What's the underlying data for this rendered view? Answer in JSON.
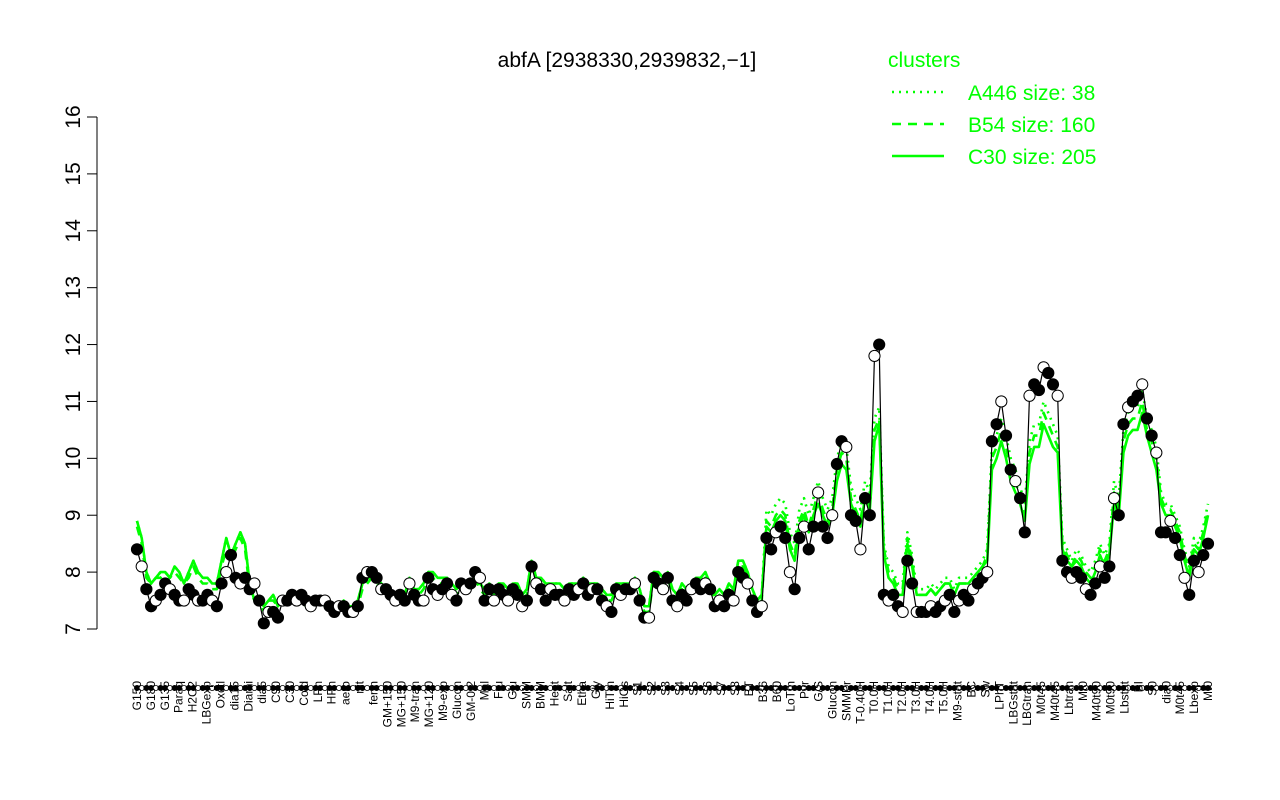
{
  "chart_data": {
    "type": "line",
    "title": "abfA [2938330,2939832,−1]",
    "xlabel": "",
    "ylabel": "",
    "ylim": [
      7,
      16
    ],
    "yticks": [
      7,
      8,
      9,
      10,
      11,
      12,
      13,
      14,
      15,
      16
    ],
    "x_tick_labels": [
      "G150",
      "G180",
      "G135",
      "Paraq",
      "H2O2",
      "LBGexp",
      "Oxctl",
      "dia15",
      "Diami",
      "dia5",
      "C90",
      "C30",
      "Cold",
      "LPh",
      "HPh",
      "aero",
      "nit",
      "ferm",
      "GM+150",
      "MG+150",
      "M9-tran",
      "MG+120",
      "M9-exp",
      "Glucon",
      "GM-0.2",
      "Mal",
      "Fru",
      "Glu",
      "SMM",
      "BMM",
      "Heat",
      "Salt",
      "Etha",
      "Gly",
      "HiTm",
      "HiOs",
      "S1",
      "S2",
      "S3",
      "S4",
      "S5",
      "S6",
      "S7",
      "S8",
      "BT",
      "B36",
      "B60",
      "LoTm",
      "Pyr",
      "G/S",
      "Glucon",
      "SMMPr",
      "T-0.40H",
      "T0.0H",
      "T1.0H",
      "T2.0H",
      "T3.0H",
      "T4.0H",
      "T5.0H",
      "M9-stat",
      "BC",
      "Sw",
      "LPhT",
      "LBGstat",
      "LBGtran",
      "M0t45",
      "M40t45",
      "Lbtran",
      "Mt0",
      "M40t90",
      "M0t90",
      "Lbstat",
      "BI",
      "S0",
      "dia0",
      "M0t45",
      "Lbexp",
      "Mt0"
    ],
    "legend": {
      "title": "clusters",
      "position": "top-right",
      "entries": [
        {
          "label": "A446 size: 38",
          "style": "dotted"
        },
        {
          "label": "B54 size: 160",
          "style": "dashed"
        },
        {
          "label": "C30 size: 205",
          "style": "solid"
        }
      ]
    },
    "series": [
      {
        "name": "abfA",
        "style": "black line with filled and open circle markers",
        "values": [
          8.4,
          8.1,
          7.7,
          7.4,
          7.5,
          7.6,
          7.8,
          7.7,
          7.6,
          7.5,
          7.5,
          7.7,
          7.6,
          7.5,
          7.5,
          7.6,
          7.5,
          7.4,
          7.8,
          8.0,
          8.3,
          7.9,
          7.8,
          7.9,
          7.7,
          7.8,
          7.5,
          7.1,
          7.3,
          7.3,
          7.2,
          7.5,
          7.5,
          7.6,
          7.5,
          7.6,
          7.5,
          7.4,
          7.5,
          7.5,
          7.5,
          7.4,
          7.3,
          7.4,
          7.4,
          7.3,
          7.3,
          7.4,
          7.9,
          8.0,
          8.0,
          7.9,
          7.7,
          7.7,
          7.6,
          7.5,
          7.6,
          7.5,
          7.8,
          7.6,
          7.5,
          7.5,
          7.9,
          7.7,
          7.6,
          7.7,
          7.8,
          7.6,
          7.5,
          7.8,
          7.7,
          7.8,
          8.0,
          7.9,
          7.5,
          7.7,
          7.5,
          7.7,
          7.6,
          7.5,
          7.7,
          7.6,
          7.4,
          7.5,
          8.1,
          7.8,
          7.7,
          7.5,
          7.7,
          7.6,
          7.6,
          7.5,
          7.7,
          7.6,
          7.7,
          7.8,
          7.6,
          7.7,
          7.7,
          7.5,
          7.4,
          7.3,
          7.7,
          7.6,
          7.7,
          7.7,
          7.8,
          7.5,
          7.2,
          7.2,
          7.9,
          7.8,
          7.7,
          7.9,
          7.5,
          7.4,
          7.6,
          7.5,
          7.7,
          7.8,
          7.7,
          7.8,
          7.7,
          7.4,
          7.5,
          7.4,
          7.6,
          7.5,
          8.0,
          7.9,
          7.8,
          7.5,
          7.3,
          7.4,
          8.6,
          8.4,
          8.7,
          8.8,
          8.6,
          8.0,
          7.7,
          8.6,
          8.8,
          8.4,
          8.8,
          9.4,
          8.8,
          8.6,
          9.0,
          9.9,
          10.3,
          10.2,
          9.0,
          8.9,
          8.4,
          9.3,
          9.0,
          11.8,
          12.0,
          7.6,
          7.5,
          7.6,
          7.4,
          7.3,
          8.2,
          7.8,
          7.3,
          7.3,
          7.3,
          7.4,
          7.3,
          7.4,
          7.5,
          7.6,
          7.3,
          7.5,
          7.6,
          7.5,
          7.7,
          7.8,
          7.9,
          8.0,
          10.3,
          10.6,
          11.0,
          10.4,
          9.8,
          9.6,
          9.3,
          8.7,
          11.1,
          11.3,
          11.2,
          11.6,
          11.5,
          11.3,
          11.1,
          8.2,
          8.0,
          7.9,
          8.0,
          7.9,
          7.7,
          7.6,
          7.8,
          8.1,
          7.9,
          8.1,
          9.3,
          9.0,
          10.6,
          10.9,
          11.0,
          11.1,
          11.3,
          10.7,
          10.4,
          10.1,
          8.7,
          8.7,
          8.9,
          8.6,
          8.3,
          7.9,
          7.6,
          8.2,
          8.0,
          8.3,
          8.5
        ]
      },
      {
        "name": "C30 size: 205",
        "style": "solid green line",
        "values": [
          8.9,
          8.6,
          8.0,
          7.8,
          7.9,
          8.0,
          8.0,
          7.9,
          8.1,
          8.0,
          7.8,
          8.0,
          8.2,
          8.0,
          7.9,
          7.9,
          7.8,
          7.8,
          8.2,
          8.6,
          8.3,
          8.5,
          8.7,
          8.5,
          7.8,
          7.5,
          7.5,
          7.4,
          7.5,
          7.6,
          7.4,
          7.5,
          7.6,
          7.6,
          7.6,
          7.5,
          7.4,
          7.4,
          7.5,
          7.5,
          7.4,
          7.4,
          7.3,
          7.4,
          7.5,
          7.4,
          7.4,
          7.5,
          7.8,
          7.9,
          7.9,
          7.9,
          7.8,
          7.7,
          7.6,
          7.6,
          7.6,
          7.6,
          7.9,
          7.7,
          7.7,
          7.8,
          8.0,
          8.0,
          7.9,
          7.9,
          7.9,
          7.8,
          7.7,
          7.8,
          7.8,
          7.8,
          7.9,
          7.8,
          7.7,
          7.8,
          7.7,
          7.8,
          7.8,
          7.7,
          7.8,
          7.8,
          7.6,
          7.7,
          8.2,
          7.9,
          7.9,
          7.8,
          7.8,
          7.8,
          7.8,
          7.7,
          7.8,
          7.8,
          7.8,
          7.9,
          7.8,
          7.8,
          7.8,
          7.7,
          7.6,
          7.6,
          7.8,
          7.8,
          7.8,
          7.8,
          7.9,
          7.7,
          7.4,
          7.4,
          8.0,
          8.0,
          7.9,
          8.0,
          7.7,
          7.6,
          7.8,
          7.7,
          7.8,
          7.9,
          7.9,
          8.0,
          7.8,
          7.6,
          7.7,
          7.6,
          7.8,
          7.7,
          8.2,
          8.2,
          8.0,
          7.7,
          7.5,
          7.6,
          8.8,
          8.7,
          8.9,
          9.0,
          8.9,
          8.4,
          8.2,
          8.8,
          9.0,
          8.7,
          9.0,
          9.2,
          9.0,
          8.8,
          9.0,
          9.6,
          9.9,
          9.8,
          9.2,
          9.0,
          8.8,
          9.3,
          9.1,
          10.3,
          10.6,
          8.3,
          7.9,
          7.8,
          7.6,
          7.6,
          8.5,
          8.1,
          7.6,
          7.6,
          7.6,
          7.7,
          7.6,
          7.7,
          7.8,
          7.8,
          7.6,
          7.8,
          7.8,
          7.8,
          7.9,
          8.0,
          8.1,
          8.2,
          9.8,
          10.0,
          10.3,
          10.0,
          9.6,
          9.4,
          9.2,
          8.9,
          9.9,
          10.2,
          10.2,
          10.6,
          10.4,
          10.2,
          10.1,
          8.4,
          8.2,
          8.1,
          8.2,
          8.1,
          7.9,
          7.8,
          8.0,
          8.3,
          8.1,
          8.3,
          9.2,
          9.0,
          10.1,
          10.4,
          10.5,
          10.5,
          10.8,
          10.4,
          10.1,
          9.8,
          9.2,
          9.0,
          9.0,
          8.8,
          8.6,
          8.2,
          7.9,
          8.4,
          8.3,
          8.6,
          9.0
        ]
      },
      {
        "name": "B54 size: 160",
        "style": "dashed green line",
        "values": [
          8.8,
          8.5,
          7.9,
          7.8,
          7.9,
          7.9,
          8.0,
          7.9,
          8.0,
          7.9,
          7.8,
          7.9,
          8.1,
          7.9,
          7.8,
          7.8,
          7.7,
          7.7,
          8.1,
          8.4,
          8.2,
          8.4,
          8.6,
          8.4,
          7.7,
          7.5,
          7.5,
          7.3,
          7.5,
          7.5,
          7.4,
          7.5,
          7.5,
          7.6,
          7.6,
          7.5,
          7.4,
          7.4,
          7.5,
          7.5,
          7.4,
          7.4,
          7.3,
          7.4,
          7.4,
          7.4,
          7.3,
          7.4,
          7.7,
          7.8,
          7.9,
          7.8,
          7.7,
          7.7,
          7.6,
          7.6,
          7.6,
          7.6,
          7.8,
          7.6,
          7.6,
          7.7,
          7.9,
          7.9,
          7.8,
          7.8,
          7.8,
          7.7,
          7.6,
          7.7,
          7.7,
          7.8,
          7.9,
          7.7,
          7.6,
          7.7,
          7.6,
          7.7,
          7.7,
          7.6,
          7.7,
          7.7,
          7.5,
          7.6,
          8.1,
          7.8,
          7.8,
          7.7,
          7.7,
          7.7,
          7.7,
          7.6,
          7.7,
          7.7,
          7.7,
          7.8,
          7.7,
          7.7,
          7.7,
          7.6,
          7.5,
          7.5,
          7.7,
          7.7,
          7.7,
          7.7,
          7.8,
          7.6,
          7.3,
          7.3,
          7.9,
          7.9,
          7.8,
          7.9,
          7.6,
          7.5,
          7.7,
          7.6,
          7.7,
          7.8,
          7.8,
          7.9,
          7.7,
          7.5,
          7.6,
          7.5,
          7.7,
          7.6,
          8.1,
          8.1,
          7.9,
          7.6,
          7.4,
          7.5,
          8.9,
          8.8,
          9.0,
          9.1,
          9.0,
          8.5,
          8.3,
          8.9,
          9.1,
          8.8,
          9.1,
          9.4,
          9.1,
          8.9,
          9.1,
          9.8,
          10.1,
          10.0,
          9.3,
          9.1,
          8.9,
          9.4,
          9.2,
          10.5,
          10.7,
          8.4,
          8.0,
          7.9,
          7.7,
          7.7,
          8.6,
          8.2,
          7.6,
          7.6,
          7.6,
          7.7,
          7.6,
          7.7,
          7.8,
          7.8,
          7.6,
          7.8,
          7.8,
          7.8,
          7.9,
          8.0,
          8.1,
          8.3,
          10.0,
          10.2,
          10.5,
          10.2,
          9.8,
          9.6,
          9.3,
          9.0,
          10.1,
          10.4,
          10.4,
          10.8,
          10.6,
          10.4,
          10.2,
          8.5,
          8.3,
          8.1,
          8.3,
          8.2,
          8.0,
          7.9,
          8.1,
          8.4,
          8.2,
          8.4,
          9.4,
          9.1,
          10.3,
          10.6,
          10.7,
          10.7,
          11.0,
          10.5,
          10.3,
          10.0,
          9.3,
          9.1,
          9.1,
          8.9,
          8.7,
          8.3,
          8.0,
          8.5,
          8.4,
          8.7,
          9.1
        ]
      },
      {
        "name": "A446 size: 38",
        "style": "dotted green line",
        "values": [
          8.9,
          8.6,
          8.0,
          7.8,
          7.9,
          8.0,
          8.0,
          7.9,
          8.1,
          8.0,
          7.8,
          8.0,
          8.2,
          8.0,
          7.9,
          7.9,
          7.8,
          7.8,
          8.2,
          8.6,
          8.3,
          8.5,
          8.7,
          8.5,
          7.8,
          7.5,
          7.5,
          7.4,
          7.5,
          7.6,
          7.4,
          7.5,
          7.6,
          7.6,
          7.6,
          7.5,
          7.4,
          7.4,
          7.5,
          7.5,
          7.4,
          7.4,
          7.3,
          7.4,
          7.5,
          7.4,
          7.4,
          7.5,
          7.8,
          7.9,
          7.9,
          7.9,
          7.8,
          7.7,
          7.6,
          7.6,
          7.6,
          7.6,
          7.9,
          7.7,
          7.7,
          7.8,
          8.0,
          8.0,
          7.9,
          7.9,
          7.9,
          7.8,
          7.7,
          7.8,
          7.8,
          7.8,
          7.9,
          7.8,
          7.7,
          7.8,
          7.7,
          7.8,
          7.8,
          7.7,
          7.8,
          7.8,
          7.6,
          7.7,
          8.2,
          7.9,
          7.9,
          7.8,
          7.8,
          7.8,
          7.8,
          7.7,
          7.8,
          7.8,
          7.8,
          7.9,
          7.8,
          7.8,
          7.8,
          7.7,
          7.6,
          7.6,
          7.8,
          7.8,
          7.8,
          7.8,
          7.9,
          7.7,
          7.4,
          7.4,
          8.0,
          8.0,
          7.9,
          8.0,
          7.7,
          7.6,
          7.8,
          7.7,
          7.8,
          7.9,
          7.9,
          8.0,
          7.8,
          7.6,
          7.7,
          7.6,
          7.8,
          7.7,
          8.2,
          8.2,
          8.0,
          7.7,
          7.5,
          7.6,
          9.1,
          9.0,
          9.2,
          9.3,
          9.2,
          8.7,
          8.5,
          9.1,
          9.3,
          9.0,
          9.3,
          9.6,
          9.3,
          9.1,
          9.3,
          10.0,
          10.3,
          10.2,
          9.5,
          9.3,
          9.1,
          9.6,
          9.4,
          10.7,
          10.9,
          8.5,
          8.1,
          8.0,
          7.8,
          7.8,
          8.7,
          8.3,
          7.7,
          7.7,
          7.7,
          7.8,
          7.7,
          7.8,
          7.9,
          7.9,
          7.7,
          7.9,
          7.9,
          7.9,
          8.0,
          8.1,
          8.2,
          8.4,
          10.2,
          10.4,
          10.7,
          10.4,
          10.0,
          9.8,
          9.5,
          9.2,
          10.3,
          10.6,
          10.6,
          11.0,
          10.8,
          10.6,
          10.4,
          8.6,
          8.4,
          8.2,
          8.4,
          8.3,
          8.1,
          8.0,
          8.2,
          8.5,
          8.3,
          8.5,
          9.6,
          9.3,
          10.5,
          10.8,
          10.9,
          10.9,
          11.2,
          10.7,
          10.5,
          10.2,
          9.4,
          9.2,
          9.2,
          9.0,
          8.8,
          8.4,
          8.1,
          8.6,
          8.5,
          8.8,
          9.2
        ]
      }
    ],
    "colors": {
      "clusters": "#00ff00",
      "expression": "#000000"
    }
  }
}
